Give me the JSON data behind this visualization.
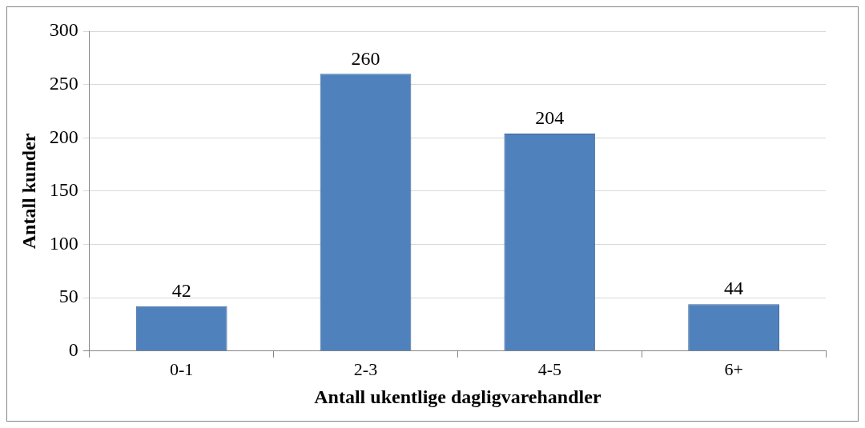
{
  "chart_data": {
    "type": "bar",
    "xlabel": "Antall ukentlige dagligvarehandler",
    "ylabel": "Antall kunder",
    "categories": [
      "0-1",
      "2-3",
      "4-5",
      "6+"
    ],
    "values": [
      42,
      260,
      204,
      44
    ],
    "color": "#4f81bd",
    "ylim": [
      0,
      300
    ],
    "yticks": [
      0,
      50,
      100,
      150,
      200,
      250,
      300
    ],
    "grid": "y",
    "data_labels": true
  }
}
